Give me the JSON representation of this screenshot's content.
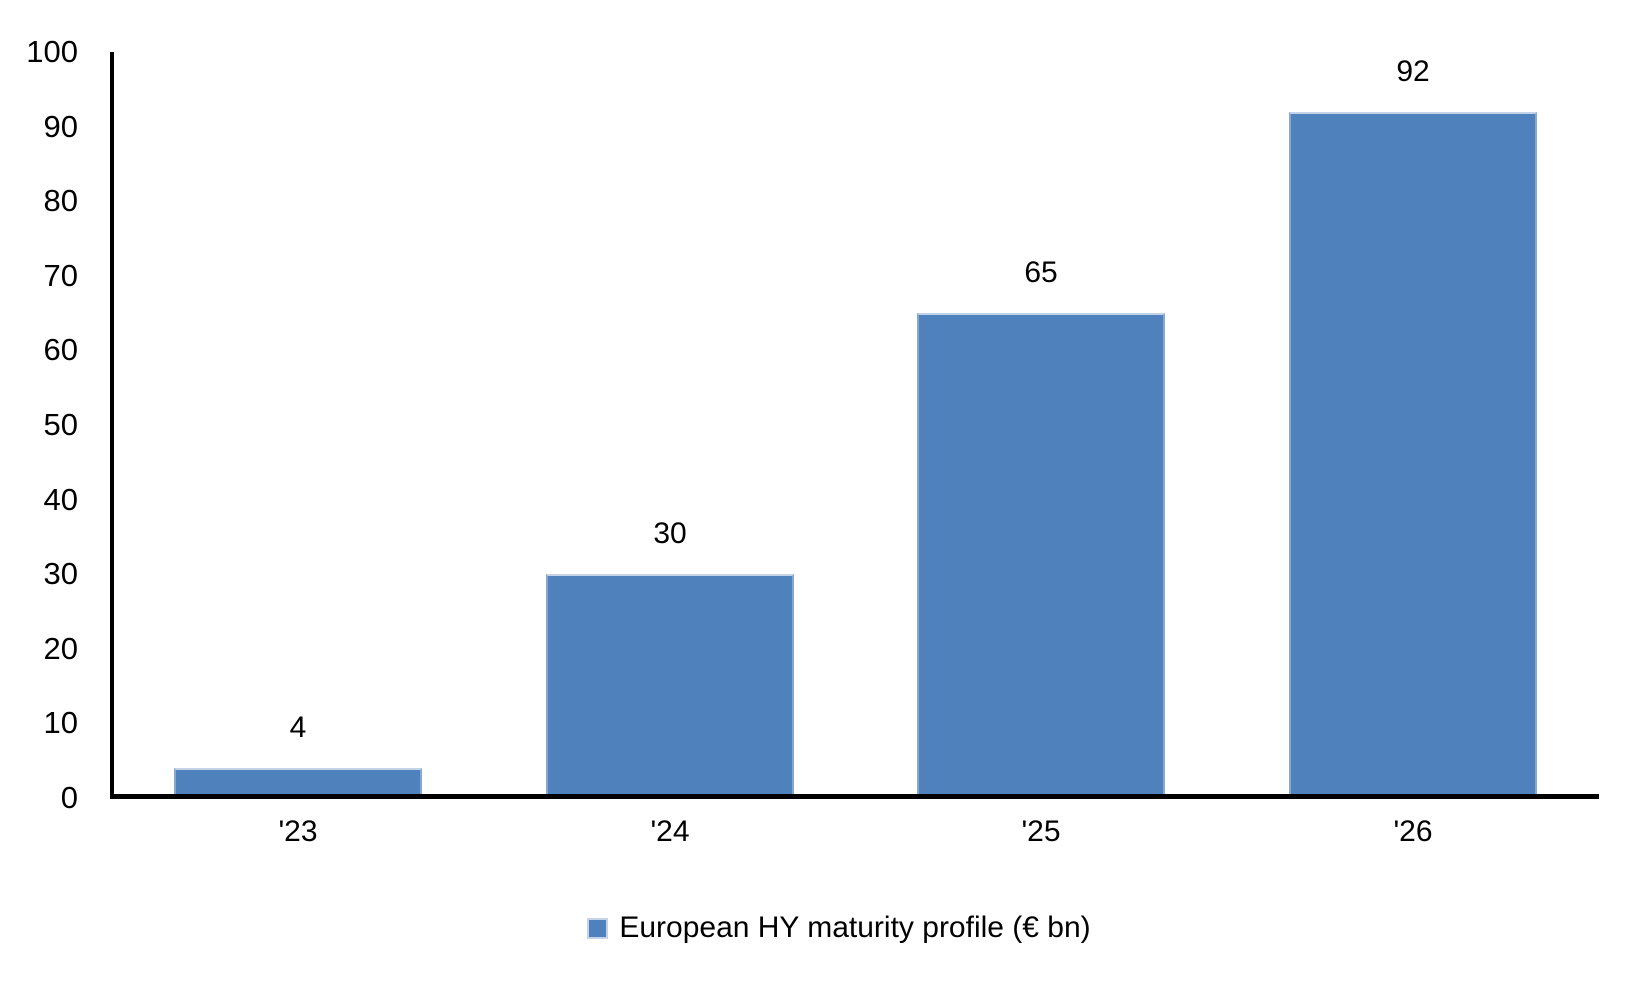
{
  "chart_data": {
    "type": "bar",
    "categories": [
      "'23",
      "'24",
      "'25",
      "'26"
    ],
    "values": [
      4,
      30,
      65,
      92
    ],
    "data_labels": [
      "4",
      "30",
      "65",
      "92"
    ],
    "series_name": "European HY maturity profile (€ bn)",
    "title": "",
    "xlabel": "",
    "ylabel": "",
    "ylim": [
      0,
      100
    ],
    "ytick_step": 10,
    "yticks": [
      0,
      10,
      20,
      30,
      40,
      50,
      60,
      70,
      80,
      90,
      100
    ],
    "grid": false,
    "legend_position": "bottom",
    "colors": {
      "bar_fill": "#4F81BD",
      "bar_highlight_border": "#C5D3E8",
      "bar_side_border": "#87A8D0",
      "axis_line": "#000000",
      "text": "#000000",
      "background": "#FFFFFF"
    }
  }
}
